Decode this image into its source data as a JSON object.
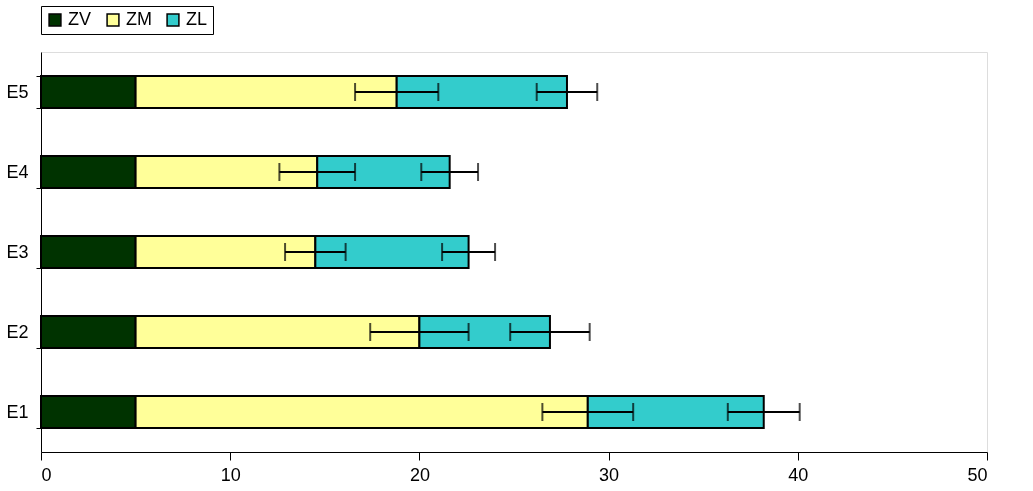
{
  "chart_data": {
    "type": "bar",
    "orientation": "horizontal",
    "stacked": true,
    "categories": [
      "E5",
      "E4",
      "E3",
      "E2",
      "E1"
    ],
    "series": [
      {
        "name": "ZV",
        "color": "#003300",
        "values": [
          5,
          5,
          5,
          5,
          5
        ]
      },
      {
        "name": "ZM",
        "color": "#ffff99",
        "values": [
          13.8,
          9.6,
          9.5,
          15.0,
          23.9
        ],
        "errors": [
          2.2,
          2.0,
          1.6,
          2.6,
          2.4
        ]
      },
      {
        "name": "ZL",
        "color": "#33cccc",
        "values": [
          9.0,
          7.0,
          8.1,
          6.9,
          9.3
        ],
        "errors": [
          1.6,
          1.5,
          1.4,
          2.1,
          1.9
        ]
      }
    ],
    "xlim": [
      0,
      50
    ],
    "xticks": [
      0,
      10,
      20,
      30,
      40,
      50
    ],
    "grid": false,
    "legend": "top"
  }
}
